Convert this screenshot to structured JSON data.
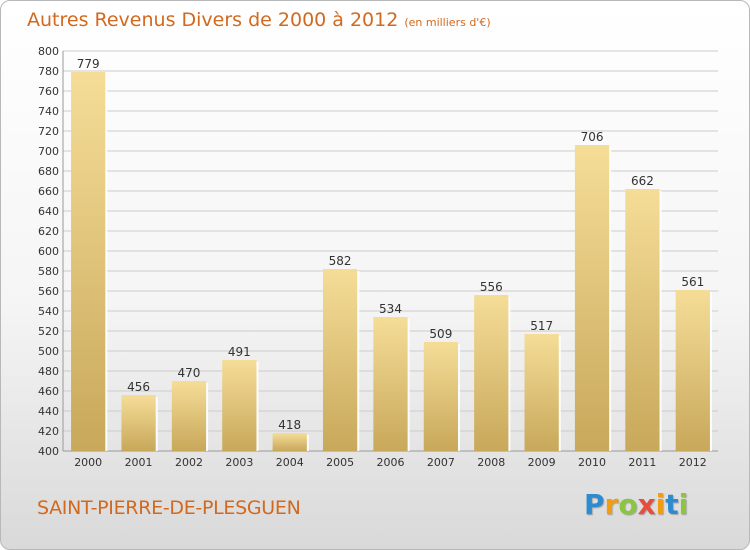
{
  "header": {
    "title": "Autres Revenus Divers de 2000 à 2012",
    "subtitle": "(en milliers d'€)"
  },
  "footer": {
    "commune": "SAINT-PIERRE-DE-PLESGUEN",
    "logo_letters": [
      "P",
      "r",
      "o",
      "x",
      "i",
      "t",
      "i"
    ],
    "logo_colors": [
      "#2e8bd0",
      "#f39c12",
      "#8cc63f",
      "#e84c3d",
      "#f39c12",
      "#2e8bd0",
      "#8cc63f"
    ]
  },
  "colors": {
    "bar_light": "#f5dd98",
    "bar_dark": "#c8a85a",
    "grid": "#cccccc",
    "axis_text": "#333333",
    "title": "#d2691e"
  },
  "chart_data": {
    "type": "bar",
    "categories": [
      "2000",
      "2001",
      "2002",
      "2003",
      "2004",
      "2005",
      "2006",
      "2007",
      "2008",
      "2009",
      "2010",
      "2011",
      "2012"
    ],
    "values": [
      779,
      456,
      470,
      491,
      418,
      582,
      534,
      509,
      556,
      517,
      706,
      662,
      561
    ],
    "ylim": [
      400,
      800
    ],
    "yticks": [
      400,
      420,
      440,
      460,
      480,
      500,
      520,
      540,
      560,
      580,
      600,
      620,
      640,
      660,
      680,
      700,
      720,
      740,
      760,
      780,
      800
    ],
    "grid": true,
    "data_labels": true
  }
}
